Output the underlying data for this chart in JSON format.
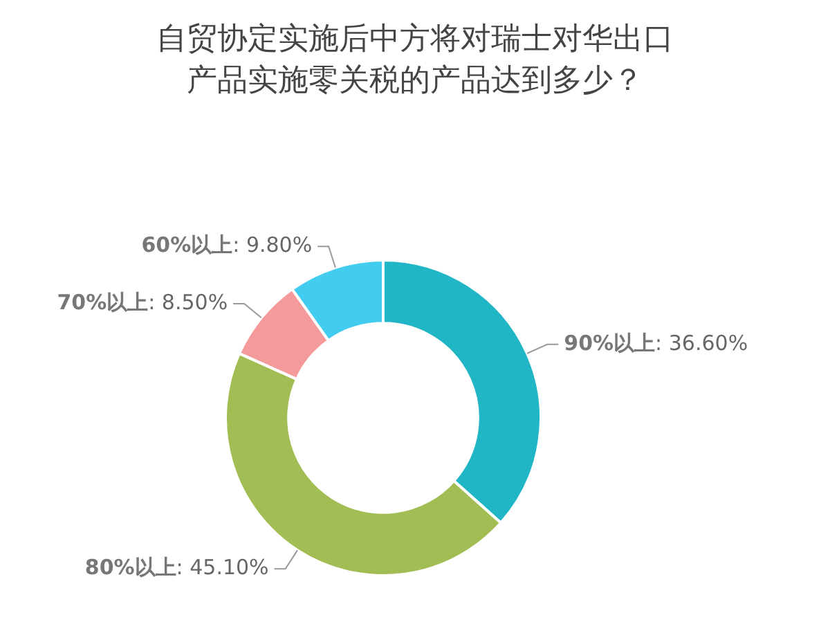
{
  "chart_data": {
    "type": "donut",
    "title": "自贸协定实施后中方将对瑞士对华出口产品实施零关税的产品达到多少？",
    "categories": [
      "90%以上",
      "80%以上",
      "70%以上",
      "60%以上"
    ],
    "values": [
      36.6,
      45.1,
      8.5,
      9.8
    ],
    "value_labels": [
      ": 36.60%",
      ": 45.10%",
      ": 8.50%",
      ": 9.80%"
    ],
    "colors": [
      "#21b6c6",
      "#a3bd55",
      "#f59a9a",
      "#42cdf0"
    ],
    "legend": false
  }
}
